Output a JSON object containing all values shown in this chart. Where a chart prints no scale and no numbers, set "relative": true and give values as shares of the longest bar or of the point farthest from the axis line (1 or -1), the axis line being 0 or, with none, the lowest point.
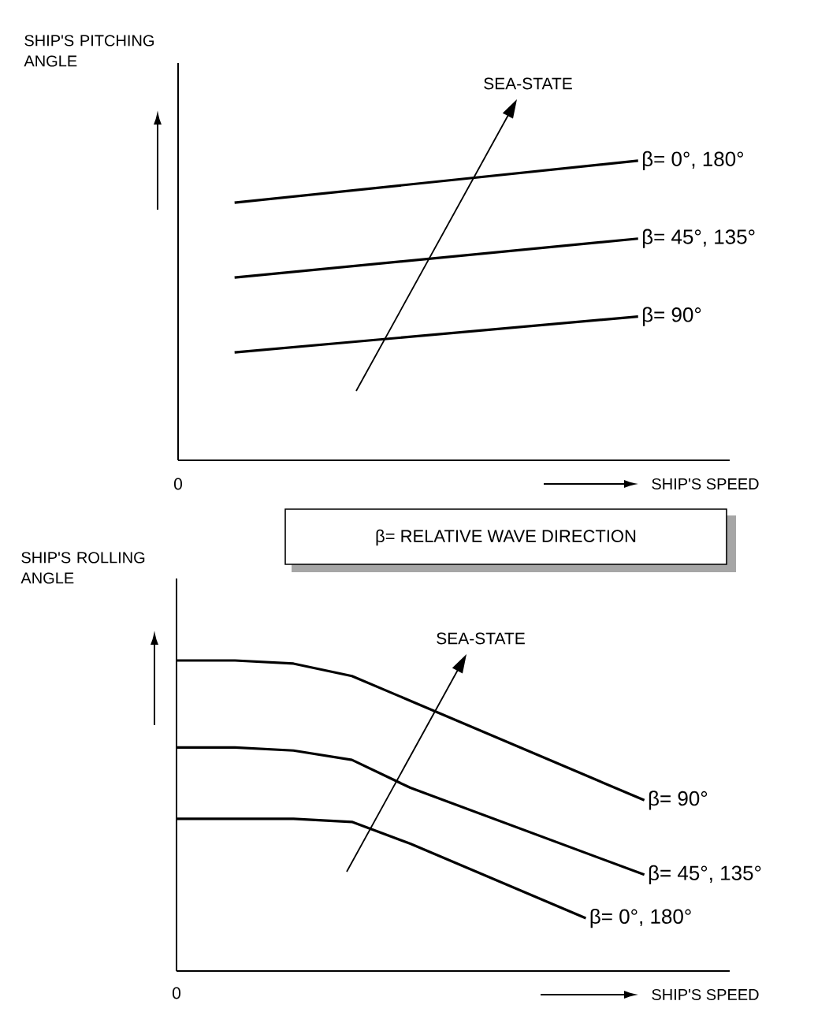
{
  "chart_data": [
    {
      "type": "line",
      "ylabel": "SHIP'S PITCHING ANGLE",
      "xlabel": "SHIP'S SPEED",
      "relative": true,
      "line_style": "solid",
      "categories": [
        null,
        null
      ],
      "annotations": [
        "0",
        "SEA-STATE",
        "β= RELATIVE WAVE DIRECTION"
      ],
      "series": [
        {
          "name": "β= 0°, 180°",
          "color": "#000000",
          "values": [
            0.86,
            1
          ]
        },
        {
          "name": "β= 45°, 135°",
          "color": "#000000",
          "values": [
            0.61,
            0.74
          ]
        },
        {
          "name": "β= 90°",
          "color": "#000000",
          "values": [
            0.36,
            0.48
          ]
        }
      ]
    },
    {
      "type": "line",
      "ylabel": "SHIP'S ROLLING ANGLE",
      "xlabel": "SHIP'S SPEED",
      "relative": true,
      "line_style": "solid",
      "categories": [
        null,
        null,
        null,
        null,
        null,
        null,
        null,
        null,
        null
      ],
      "annotations": [
        "0",
        "SEA-STATE"
      ],
      "series": [
        {
          "name": "β= 90°",
          "color": "#000000",
          "values": [
            1,
            1,
            0.99,
            0.95,
            0.87,
            0.79,
            0.71,
            0.63,
            0.55
          ]
        },
        {
          "name": "β= 45°, 135°",
          "color": "#000000",
          "values": [
            0.72,
            0.72,
            0.71,
            0.68,
            0.59,
            0.52,
            0.45,
            0.38,
            0.31
          ]
        },
        {
          "name": "β= 0°, 180°",
          "color": "#000000",
          "values": [
            0.49,
            0.49,
            0.49,
            0.48,
            0.41,
            0.33,
            0.25,
            0.17,
            null
          ]
        }
      ]
    }
  ]
}
